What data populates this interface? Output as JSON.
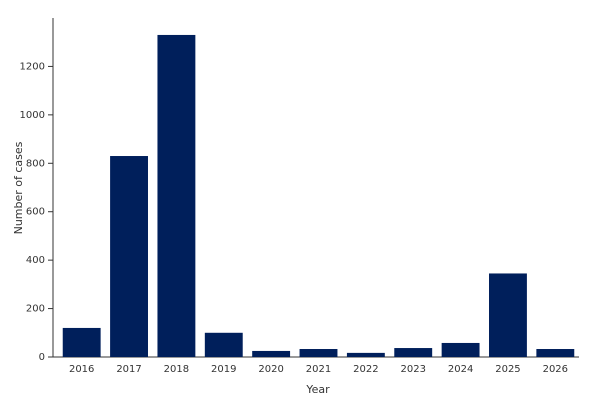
{
  "chart_data": {
    "type": "bar",
    "x_label": "Year",
    "y_label": "Number of cases",
    "categories": [
      "2016",
      "2017",
      "2018",
      "2019",
      "2020",
      "2021",
      "2022",
      "2023",
      "2024",
      "2025",
      "2026"
    ],
    "values": [
      120,
      830,
      1330,
      100,
      25,
      33,
      17,
      37,
      58,
      345,
      33
    ],
    "color": "#001f5b",
    "ylim": [
      0,
      1400
    ],
    "yticks": [
      0,
      200,
      400,
      600,
      800,
      1000,
      1200
    ],
    "grid": false
  }
}
